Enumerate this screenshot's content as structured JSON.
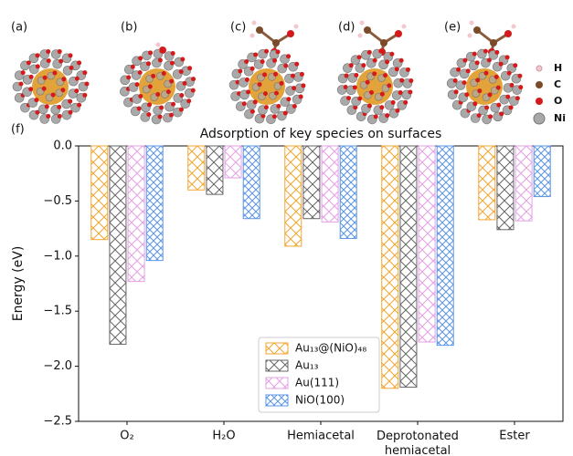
{
  "panel_labels": [
    "(a)",
    "(b)",
    "(c)",
    "(d)",
    "(e)",
    "(f)"
  ],
  "atom_legend": [
    "H",
    "C",
    "O",
    "Ni"
  ],
  "chart_data": {
    "type": "bar",
    "title": "Adsorption of key species on surfaces",
    "y_label": "Energy (eV)",
    "categories": [
      "O₂",
      "H₂O",
      "Hemiacetal",
      "Deprotonated hemiacetal",
      "Ester"
    ],
    "series": [
      {
        "name": "Au₁₃@(NiO)₄₈",
        "color": "#f2a531",
        "values": [
          -0.85,
          -0.4,
          -0.91,
          -2.2,
          -0.67
        ]
      },
      {
        "name": "Au₁₃",
        "color": "#666666",
        "values": [
          -1.8,
          -0.44,
          -0.66,
          -2.19,
          -0.76
        ]
      },
      {
        "name": "Au(111)",
        "color": "#e3a1e3",
        "values": [
          -1.23,
          -0.29,
          -0.69,
          -1.78,
          -0.68
        ]
      },
      {
        "name": "NiO(100)",
        "color": "#5b95e6",
        "values": [
          -1.04,
          -0.66,
          -0.84,
          -1.81,
          -0.46
        ]
      }
    ],
    "ylim": [
      -2.5,
      0
    ],
    "yticks": [
      {
        "value": 0,
        "label": "0.0"
      },
      {
        "value": -0.5,
        "label": "−0.5"
      },
      {
        "value": -1,
        "label": "−1.0"
      },
      {
        "value": -1.5,
        "label": "−1.5"
      },
      {
        "value": -2,
        "label": "−2.0"
      },
      {
        "value": -2.5,
        "label": "−2.5"
      }
    ],
    "legend": "lower center"
  }
}
